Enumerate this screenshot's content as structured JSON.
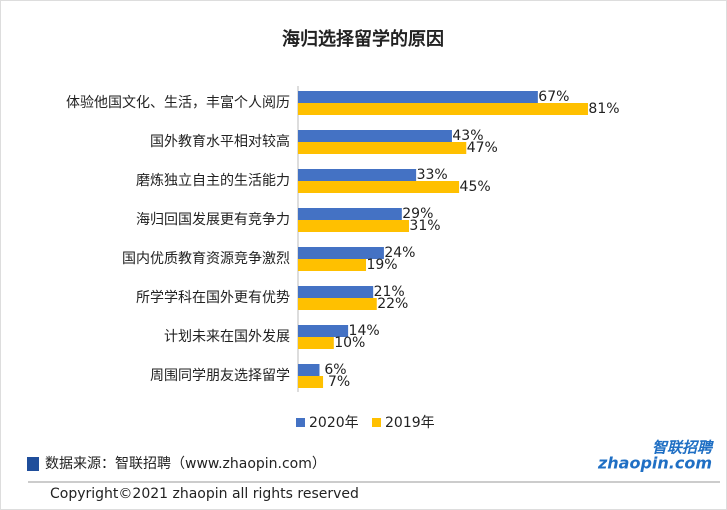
{
  "chart_data": {
    "type": "bar",
    "orientation": "horizontal",
    "title": "海归选择留学的原因",
    "categories": [
      "体验他国文化、生活，丰富个人阅历",
      "国外教育水平相对较高",
      "磨炼独立自主的生活能力",
      "海归回国发展更有竞争力",
      "国内优质教育资源竞争激烈",
      "所学学科在国外更有优势",
      "计划未来在国外发展",
      "周围同学朋友选择留学"
    ],
    "series": [
      {
        "name": "2020年",
        "color": "#4472c4",
        "values": [
          67,
          43,
          33,
          29,
          24,
          21,
          14,
          6
        ],
        "value_labels": [
          "67%",
          "43%",
          "33%",
          "29%",
          "24%",
          "21%",
          "14%",
          "6%"
        ]
      },
      {
        "name": "2019年",
        "color": "#ffc000",
        "values": [
          81,
          47,
          45,
          31,
          19,
          22,
          10,
          7
        ],
        "value_labels": [
          "81%",
          "47%",
          "45%",
          "31%",
          "19%",
          "22%",
          "10%",
          "7%"
        ]
      }
    ],
    "legend": "bottom"
  },
  "footer": {
    "source": "数据来源：智联招聘（www.zhaopin.com）",
    "copyright": "Copyright©2021 zhaopin all rights reserved",
    "logo_cn": "智联招聘",
    "logo_en": "zhaopin.com"
  }
}
